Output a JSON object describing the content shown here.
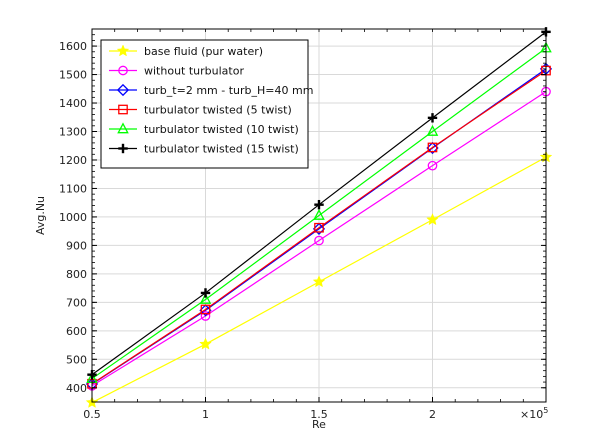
{
  "chart_data": {
    "type": "line",
    "xlabel": "Re",
    "ylabel": "Avg.Nu",
    "x_multiplier_label": "×10",
    "x_multiplier_exp": "5",
    "x": [
      0.5,
      1,
      1.5,
      2,
      2.5
    ],
    "xlim": [
      0.5,
      2.5
    ],
    "ylim": [
      350,
      1660
    ],
    "x_ticks": [
      {
        "value": 0.5,
        "label": "0.5"
      },
      {
        "value": 1,
        "label": "1"
      },
      {
        "value": 1.5,
        "label": "1.5"
      },
      {
        "value": 2,
        "label": "2"
      }
    ],
    "y_ticks": [
      400,
      500,
      600,
      700,
      800,
      900,
      1000,
      1100,
      1200,
      1300,
      1400,
      1500,
      1600
    ],
    "grid": true,
    "legend_position": "top-left",
    "series": [
      {
        "name": "base fluid (pur water)",
        "color": "#ffff00",
        "marker": "star",
        "values": [
          348,
          553,
          772,
          990,
          1210
        ]
      },
      {
        "name": "without turbulator",
        "color": "#ff00ff",
        "marker": "circle",
        "values": [
          407,
          652,
          917,
          1180,
          1440
        ]
      },
      {
        "name": "turb_t=2 mm - turb_H=40 mm",
        "color": "#0000ff",
        "marker": "diamond",
        "values": [
          413,
          672,
          958,
          1242,
          1520
        ]
      },
      {
        "name": "turbulator twisted (5 twist)",
        "color": "#ff0000",
        "marker": "square",
        "values": [
          414,
          675,
          962,
          1244,
          1514
        ]
      },
      {
        "name": "turbulator twisted (10 twist)",
        "color": "#00ff00",
        "marker": "triangle",
        "values": [
          432,
          710,
          1005,
          1300,
          1593
        ]
      },
      {
        "name": "turbulator twisted (15 twist)",
        "color": "#000000",
        "marker": "plus",
        "values": [
          446,
          733,
          1043,
          1348,
          1650
        ]
      }
    ]
  }
}
